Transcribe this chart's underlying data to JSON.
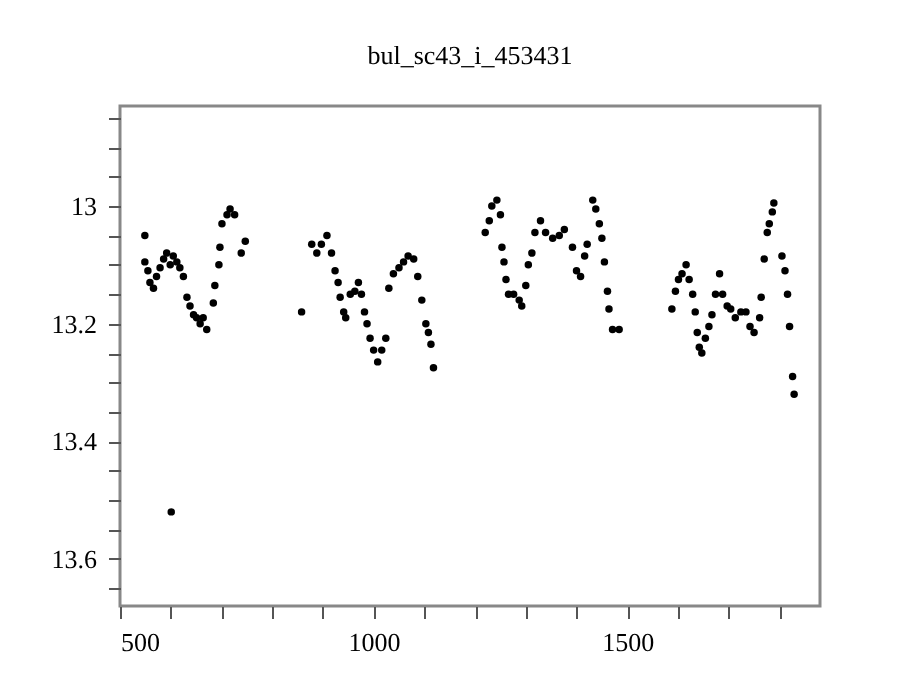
{
  "chart_data": {
    "type": "scatter",
    "title": "bul_sc43_i_453431",
    "x": [
      549,
      549,
      555,
      559,
      566,
      572,
      579,
      586,
      592,
      599,
      601,
      605,
      612,
      618,
      625,
      632,
      638,
      645,
      651,
      658,
      664,
      671,
      684,
      687,
      695,
      697,
      701,
      711,
      717,
      726,
      739,
      747,
      858,
      878,
      888,
      897,
      908,
      917,
      924,
      930,
      934,
      941,
      945,
      954,
      963,
      970,
      976,
      982,
      987,
      993,
      1000,
      1008,
      1016,
      1024,
      1030,
      1039,
      1050,
      1059,
      1068,
      1079,
      1087,
      1095,
      1103,
      1108,
      1113,
      1118,
      1220,
      1228,
      1233,
      1243,
      1250,
      1253,
      1257,
      1261,
      1266,
      1276,
      1287,
      1292,
      1300,
      1305,
      1312,
      1318,
      1329,
      1339,
      1353,
      1366,
      1376,
      1392,
      1400,
      1408,
      1416,
      1421,
      1432,
      1438,
      1445,
      1450,
      1455,
      1461,
      1464,
      1471,
      1484,
      1588,
      1595,
      1601,
      1608,
      1616,
      1622,
      1629,
      1634,
      1638,
      1642,
      1647,
      1654,
      1661,
      1667,
      1674,
      1682,
      1688,
      1697,
      1704,
      1713,
      1724,
      1734,
      1742,
      1750,
      1761,
      1764,
      1770,
      1776,
      1780,
      1786,
      1789,
      1805,
      1811,
      1816,
      1820,
      1826,
      1829
    ],
    "series": [
      {
        "color": "#000000",
        "values": [
          13.05,
          13.095,
          13.11,
          13.13,
          13.14,
          13.12,
          13.105,
          13.09,
          13.08,
          13.1,
          13.52,
          13.085,
          13.095,
          13.105,
          13.12,
          13.155,
          13.17,
          13.185,
          13.19,
          13.2,
          13.19,
          13.21,
          13.165,
          13.135,
          13.1,
          13.07,
          13.03,
          13.015,
          13.005,
          13.015,
          13.08,
          13.06,
          13.18,
          13.065,
          13.08,
          13.065,
          13.05,
          13.08,
          13.11,
          13.13,
          13.155,
          13.18,
          13.19,
          13.15,
          13.145,
          13.13,
          13.15,
          13.18,
          13.2,
          13.225,
          13.245,
          13.265,
          13.245,
          13.225,
          13.14,
          13.115,
          13.105,
          13.095,
          13.085,
          13.09,
          13.12,
          13.16,
          13.2,
          13.215,
          13.235,
          13.275,
          13.045,
          13.025,
          13,
          12.99,
          13.015,
          13.07,
          13.095,
          13.125,
          13.15,
          13.15,
          13.16,
          13.17,
          13.135,
          13.1,
          13.08,
          13.045,
          13.025,
          13.045,
          13.055,
          13.05,
          13.04,
          13.07,
          13.11,
          13.12,
          13.085,
          13.065,
          12.99,
          13.005,
          13.03,
          13.055,
          13.095,
          13.145,
          13.175,
          13.21,
          13.21,
          13.175,
          13.145,
          13.125,
          13.115,
          13.1,
          13.125,
          13.15,
          13.18,
          13.215,
          13.24,
          13.25,
          13.225,
          13.205,
          13.185,
          13.15,
          13.115,
          13.15,
          13.17,
          13.175,
          13.19,
          13.18,
          13.18,
          13.205,
          13.215,
          13.19,
          13.155,
          13.09,
          13.045,
          13.03,
          13.01,
          12.995,
          13.085,
          13.11,
          13.15,
          13.205,
          13.29,
          13.32
        ]
      }
    ],
    "xlim": [
      500,
      1880
    ],
    "xticks": [
      500,
      {
        "value": 600,
        "label": null
      },
      {
        "value": 700,
        "label": null
      },
      {
        "value": 800,
        "label": null
      },
      {
        "value": 900,
        "label": null
      },
      1000,
      {
        "value": 1100,
        "label": null
      },
      {
        "value": 1200,
        "label": null
      },
      {
        "value": 1300,
        "label": null
      },
      {
        "value": 1400,
        "label": null
      },
      1500,
      {
        "value": 1600,
        "label": null
      },
      {
        "value": 1700,
        "label": null
      },
      {
        "value": 1800,
        "label": null
      }
    ],
    "ylim": [
      13.68,
      12.83
    ],
    "yticks": [
      {
        "value": 12.85,
        "label": null
      },
      {
        "value": 12.9,
        "label": null
      },
      {
        "value": 12.95,
        "label": null
      },
      13,
      {
        "value": 13.05,
        "label": null
      },
      {
        "value": 13.1,
        "label": null
      },
      {
        "value": 13.15,
        "label": null
      },
      13.2,
      {
        "value": 13.25,
        "label": null
      },
      {
        "value": 13.3,
        "label": null
      },
      {
        "value": 13.35,
        "label": null
      },
      13.4,
      {
        "value": 13.45,
        "label": null
      },
      {
        "value": 13.5,
        "label": null
      },
      {
        "value": 13.55,
        "label": null
      },
      13.6,
      {
        "value": 13.65,
        "label": null
      }
    ],
    "grid": false,
    "marker": "circle"
  }
}
